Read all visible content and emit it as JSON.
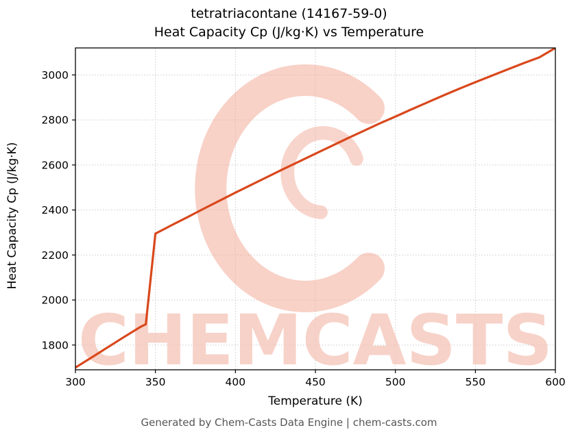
{
  "footer": {
    "caption": "Generated by Chem-Casts Data Engine | chem-casts.com"
  },
  "watermark": {
    "text": "CHEMCASTS",
    "text_color": "#f5c3b6",
    "logo_color": "#f2ab99",
    "logo_icon": "chemcasts-c-swirl-logo"
  },
  "chart_data": {
    "type": "line",
    "title": "tetratriacontane (14167-59-0)",
    "subtitle": "Heat Capacity Cp (J/kg·K) vs Temperature",
    "xlabel": "Temperature (K)",
    "ylabel": "Heat Capacity Cp (J/kg·K)",
    "xlim": [
      300,
      600
    ],
    "ylim": [
      1690,
      3120
    ],
    "xticks": [
      300,
      350,
      400,
      450,
      500,
      550,
      600
    ],
    "yticks": [
      1800,
      2000,
      2200,
      2400,
      2600,
      2800,
      3000
    ],
    "grid": true,
    "grid_color": "#c9c9c9",
    "line_color": "#d9481c",
    "legend": "none",
    "series": [
      {
        "name": "Heat Capacity Cp",
        "points": [
          [
            300,
            1700
          ],
          [
            310,
            1744
          ],
          [
            320,
            1789
          ],
          [
            330,
            1834
          ],
          [
            341,
            1882
          ],
          [
            344,
            1892
          ],
          [
            350,
            2295
          ],
          [
            360,
            2332
          ],
          [
            370,
            2368
          ],
          [
            380,
            2405
          ],
          [
            390,
            2441
          ],
          [
            400,
            2477
          ],
          [
            410,
            2512
          ],
          [
            420,
            2547
          ],
          [
            430,
            2582
          ],
          [
            440,
            2616
          ],
          [
            450,
            2650
          ],
          [
            460,
            2684
          ],
          [
            470,
            2718
          ],
          [
            480,
            2751
          ],
          [
            490,
            2784
          ],
          [
            500,
            2815
          ],
          [
            510,
            2847
          ],
          [
            520,
            2878
          ],
          [
            530,
            2909
          ],
          [
            540,
            2939
          ],
          [
            550,
            2968
          ],
          [
            560,
            2996
          ],
          [
            570,
            3024
          ],
          [
            580,
            3052
          ],
          [
            590,
            3078
          ],
          [
            600,
            3120
          ]
        ]
      }
    ]
  }
}
